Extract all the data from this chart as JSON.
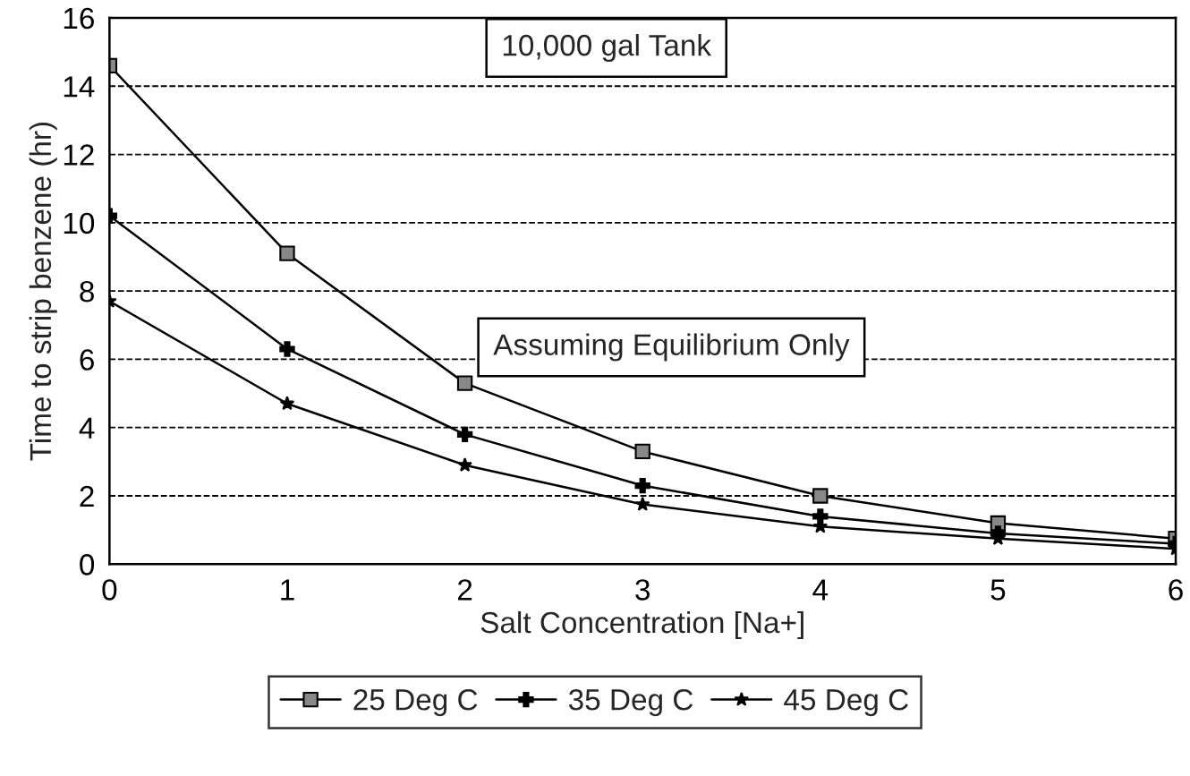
{
  "chart_data": {
    "type": "line",
    "xlabel": "Salt Concentration [Na+]",
    "ylabel": "Time to strip benzene (hr)",
    "x": [
      0,
      1,
      2,
      3,
      4,
      5,
      6
    ],
    "series": [
      {
        "name": "25 Deg C",
        "color": "#000000",
        "marker": "square",
        "values": [
          14.6,
          9.1,
          5.3,
          3.3,
          2.0,
          1.2,
          0.75
        ]
      },
      {
        "name": "35 Deg C",
        "color": "#000000",
        "marker": "cross",
        "values": [
          10.2,
          6.3,
          3.8,
          2.3,
          1.4,
          0.9,
          0.6
        ]
      },
      {
        "name": "45 Deg C",
        "color": "#000000",
        "marker": "star",
        "values": [
          7.7,
          4.7,
          2.9,
          1.75,
          1.1,
          0.75,
          0.45
        ]
      }
    ],
    "xlim": [
      0,
      6
    ],
    "xticks": [
      0,
      1,
      2,
      3,
      4,
      5,
      6
    ],
    "ylim": [
      0,
      16
    ],
    "yticks": [
      0,
      2,
      4,
      6,
      8,
      10,
      12,
      14,
      16
    ],
    "grid": "y",
    "legend": "bottom",
    "line_style": "solid",
    "annotations": [
      "10,000 gal Tank",
      "Assuming Equilibrium Only"
    ]
  }
}
